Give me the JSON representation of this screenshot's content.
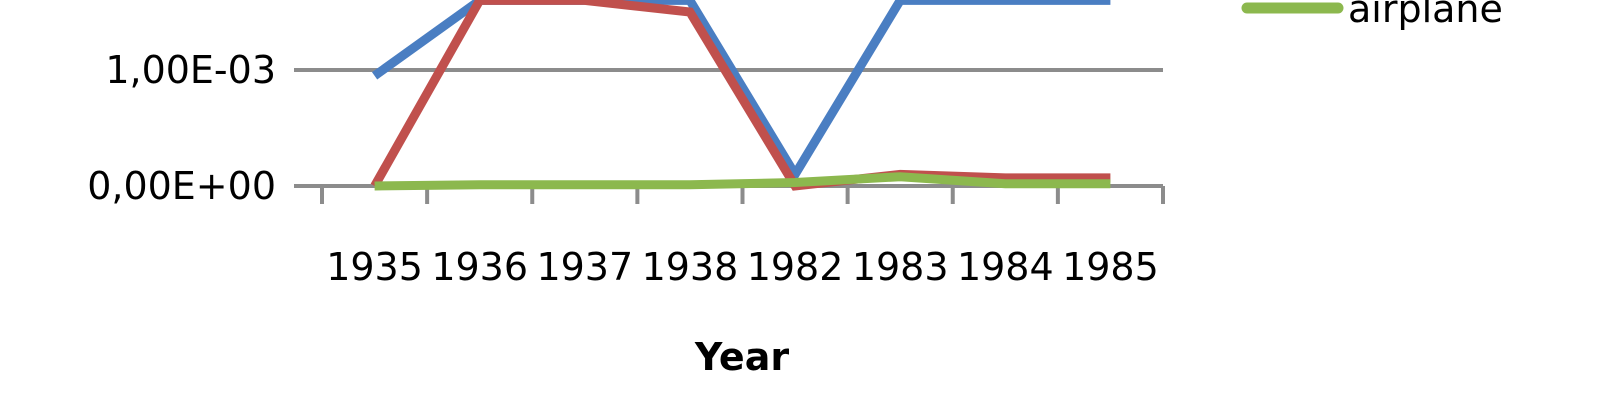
{
  "chart_data": {
    "type": "line",
    "title": "",
    "xlabel": "Year",
    "ylabel": "",
    "categories": [
      "1935",
      "1936",
      "1937",
      "1938",
      "1982",
      "1983",
      "1984",
      "1985"
    ],
    "y_tick_labels": [
      "0,00E+00",
      "1,00E-03"
    ],
    "y_ticks": [
      0,
      0.001
    ],
    "ylim": [
      0,
      0.0016
    ],
    "grid": "horizontal",
    "legend_position": "right",
    "series": [
      {
        "name": "",
        "color": "#4a7ec2",
        "values": [
          0.00095,
          0.0016,
          0.0016,
          0.0016,
          0.0001,
          0.0016,
          0.0016,
          0.0016
        ]
      },
      {
        "name": "",
        "color": "#c0504d",
        "values": [
          0.0,
          0.0016,
          0.0016,
          0.0015,
          0.0,
          0.0001,
          7e-05,
          7e-05
        ]
      },
      {
        "name": "airplane",
        "color": "#8cb84e",
        "values": [
          0.0,
          1e-05,
          1e-05,
          1e-05,
          3e-05,
          8e-05,
          2e-05,
          2e-05
        ]
      }
    ]
  }
}
